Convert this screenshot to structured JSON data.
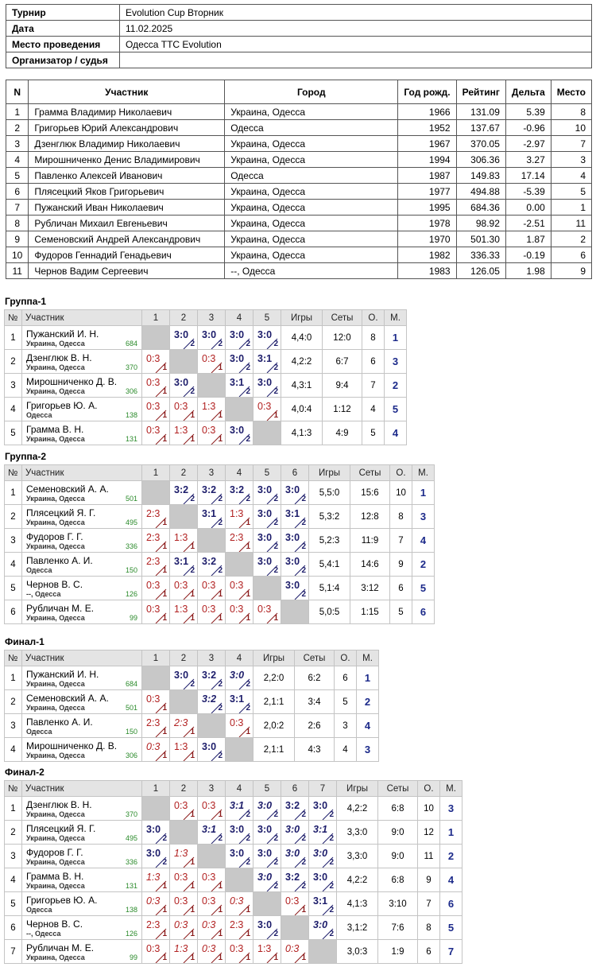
{
  "info": {
    "rows": [
      {
        "label": "Турнир",
        "value": "Evolution Cup Вторник"
      },
      {
        "label": "Дата",
        "value": "11.02.2025"
      },
      {
        "label": "Место проведения",
        "value": "Одесса TTC Evolution"
      },
      {
        "label": "Организатор / судья"
      }
    ]
  },
  "participants": {
    "header": [
      "N",
      "Участник",
      "Город",
      "Год рожд.",
      "Рейтинг",
      "Дельта",
      "Место"
    ],
    "rows": [
      [
        "1",
        "Грамма Владимир Николаевич",
        "Украина, Одесса",
        "1966",
        "131.09",
        "5.39",
        "8"
      ],
      [
        "2",
        "Григорьев Юрий Александрович",
        "Одесса",
        "1952",
        "137.67",
        "-0.96",
        "10"
      ],
      [
        "3",
        "Дзенглюк Владимир Николаевич",
        "Украина, Одесса",
        "1967",
        "370.05",
        "-2.97",
        "7"
      ],
      [
        "4",
        "Мирошниченко Денис Владимирович",
        "Украина, Одесса",
        "1994",
        "306.36",
        "3.27",
        "3"
      ],
      [
        "5",
        "Павленко Алексей Иванович",
        "Одесса",
        "1987",
        "149.83",
        "17.14",
        "4"
      ],
      [
        "6",
        "Плясецкий Яков Григорьевич",
        "Украина, Одесса",
        "1977",
        "494.88",
        "-5.39",
        "5"
      ],
      [
        "7",
        "Пужанский Иван Николаевич",
        "Украина, Одесса",
        "1995",
        "684.36",
        "0.00",
        "1"
      ],
      [
        "8",
        "Рубличан Михаил Евгеньевич",
        "Украина, Одесса",
        "1978",
        "98.92",
        "-2.51",
        "11"
      ],
      [
        "9",
        "Семеновский Андрей Александрович",
        "Украина, Одесса",
        "1970",
        "501.30",
        "1.87",
        "2"
      ],
      [
        "10",
        "Фудоров Геннадий Генадьевич",
        "Украина, Одесса",
        "1982",
        "336.33",
        "-0.19",
        "6"
      ],
      [
        "11",
        "Чернов Вадим Сергеевич",
        "--, Одесса",
        "1983",
        "126.05",
        "1.98",
        "9"
      ]
    ]
  },
  "groups": [
    {
      "title": "Группа-1",
      "header": [
        "№",
        "Участник",
        "1",
        "2",
        "3",
        "4",
        "5",
        "Игры",
        "Сеты",
        "О.",
        "М."
      ],
      "rows": [
        {
          "n": "1",
          "name": "Пужанский И. Н.",
          "city": "Украина, Одесса",
          "rating": "684",
          "results": [
            null,
            {
              "score": "3:0",
              "points": "2"
            },
            {
              "score": "3:0",
              "points": "2"
            },
            {
              "score": "3:0",
              "points": "2"
            },
            {
              "score": "3:0",
              "points": "2"
            }
          ],
          "games": "4,4:0",
          "sets": "12:0",
          "points": "8",
          "place": "1"
        },
        {
          "n": "2",
          "name": "Дзенглюк В. Н.",
          "city": "Украина, Одесса",
          "rating": "370",
          "results": [
            {
              "score": "0:3",
              "points": "1"
            },
            null,
            {
              "score": "0:3",
              "points": "1"
            },
            {
              "score": "3:0",
              "points": "2"
            },
            {
              "score": "3:1",
              "points": "2"
            }
          ],
          "games": "4,2:2",
          "sets": "6:7",
          "points": "6",
          "place": "3"
        },
        {
          "n": "3",
          "name": "Мирошниченко Д. В.",
          "city": "Украина, Одесса",
          "rating": "306",
          "results": [
            {
              "score": "0:3",
              "points": "1"
            },
            {
              "score": "3:0",
              "points": "2"
            },
            null,
            {
              "score": "3:1",
              "points": "2"
            },
            {
              "score": "3:0",
              "points": "2"
            }
          ],
          "games": "4,3:1",
          "sets": "9:4",
          "points": "7",
          "place": "2"
        },
        {
          "n": "4",
          "name": "Григорьев Ю. А.",
          "city": "Одесса",
          "rating": "138",
          "results": [
            {
              "score": "0:3",
              "points": "1"
            },
            {
              "score": "0:3",
              "points": "1"
            },
            {
              "score": "1:3",
              "points": "1"
            },
            null,
            {
              "score": "0:3",
              "points": "1"
            }
          ],
          "games": "4,0:4",
          "sets": "1:12",
          "points": "4",
          "place": "5"
        },
        {
          "n": "5",
          "name": "Грамма В. Н.",
          "city": "Украина, Одесса",
          "rating": "131",
          "results": [
            {
              "score": "0:3",
              "points": "1"
            },
            {
              "score": "1:3",
              "points": "1"
            },
            {
              "score": "0:3",
              "points": "1"
            },
            {
              "score": "3:0",
              "points": "2"
            },
            null
          ],
          "games": "4,1:3",
          "sets": "4:9",
          "points": "5",
          "place": "4"
        }
      ]
    },
    {
      "title": "Группа-2",
      "header": [
        "№",
        "Участник",
        "1",
        "2",
        "3",
        "4",
        "5",
        "6",
        "Игры",
        "Сеты",
        "О.",
        "М."
      ],
      "rows": [
        {
          "n": "1",
          "name": "Семеновский А. А.",
          "city": "Украина, Одесса",
          "rating": "501",
          "results": [
            null,
            {
              "score": "3:2",
              "points": "2"
            },
            {
              "score": "3:2",
              "points": "2"
            },
            {
              "score": "3:2",
              "points": "2"
            },
            {
              "score": "3:0",
              "points": "2"
            },
            {
              "score": "3:0",
              "points": "2"
            }
          ],
          "games": "5,5:0",
          "sets": "15:6",
          "points": "10",
          "place": "1"
        },
        {
          "n": "2",
          "name": "Плясецкий Я. Г.",
          "city": "Украина, Одесса",
          "rating": "495",
          "results": [
            {
              "score": "2:3",
              "points": "1"
            },
            null,
            {
              "score": "3:1",
              "points": "2"
            },
            {
              "score": "1:3",
              "points": "1"
            },
            {
              "score": "3:0",
              "points": "2"
            },
            {
              "score": "3:1",
              "points": "2"
            }
          ],
          "games": "5,3:2",
          "sets": "12:8",
          "points": "8",
          "place": "3"
        },
        {
          "n": "3",
          "name": "Фудоров Г. Г.",
          "city": "Украина, Одесса",
          "rating": "336",
          "results": [
            {
              "score": "2:3",
              "points": "1"
            },
            {
              "score": "1:3",
              "points": "1"
            },
            null,
            {
              "score": "2:3",
              "points": "1"
            },
            {
              "score": "3:0",
              "points": "2"
            },
            {
              "score": "3:0",
              "points": "2"
            }
          ],
          "games": "5,2:3",
          "sets": "11:9",
          "points": "7",
          "place": "4"
        },
        {
          "n": "4",
          "name": "Павленко А. И.",
          "city": "Одесса",
          "rating": "150",
          "results": [
            {
              "score": "2:3",
              "points": "1"
            },
            {
              "score": "3:1",
              "points": "2"
            },
            {
              "score": "3:2",
              "points": "2"
            },
            null,
            {
              "score": "3:0",
              "points": "2"
            },
            {
              "score": "3:0",
              "points": "2"
            }
          ],
          "games": "5,4:1",
          "sets": "14:6",
          "points": "9",
          "place": "2"
        },
        {
          "n": "5",
          "name": "Чернов В. С.",
          "city": "--, Одесса",
          "rating": "126",
          "results": [
            {
              "score": "0:3",
              "points": "1"
            },
            {
              "score": "0:3",
              "points": "1"
            },
            {
              "score": "0:3",
              "points": "1"
            },
            {
              "score": "0:3",
              "points": "1"
            },
            null,
            {
              "score": "3:0",
              "points": "2"
            }
          ],
          "games": "5,1:4",
          "sets": "3:12",
          "points": "6",
          "place": "5"
        },
        {
          "n": "6",
          "name": "Рубличан М. Е.",
          "city": "Украина, Одесса",
          "rating": "99",
          "results": [
            {
              "score": "0:3",
              "points": "1"
            },
            {
              "score": "1:3",
              "points": "1"
            },
            {
              "score": "0:3",
              "points": "1"
            },
            {
              "score": "0:3",
              "points": "1"
            },
            {
              "score": "0:3",
              "points": "1"
            },
            null
          ],
          "games": "5,0:5",
          "sets": "1:15",
          "points": "5",
          "place": "6"
        }
      ]
    },
    {
      "title": "Финал-1",
      "header": [
        "№",
        "Участник",
        "1",
        "2",
        "3",
        "4",
        "Игры",
        "Сеты",
        "О.",
        "М."
      ],
      "rows": [
        {
          "n": "1",
          "name": "Пужанский И. Н.",
          "city": "Украина, Одесса",
          "rating": "684",
          "results": [
            null,
            {
              "score": "3:0",
              "points": "2"
            },
            {
              "score": "3:2",
              "points": "2"
            },
            {
              "score": "3:0",
              "points": "2",
              "italic": true
            }
          ],
          "games": "2,2:0",
          "sets": "6:2",
          "points": "6",
          "place": "1"
        },
        {
          "n": "2",
          "name": "Семеновский А. А.",
          "city": "Украина, Одесса",
          "rating": "501",
          "results": [
            {
              "score": "0:3",
              "points": "1"
            },
            null,
            {
              "score": "3:2",
              "points": "2",
              "italic": true
            },
            {
              "score": "3:1",
              "points": "2"
            }
          ],
          "games": "2,1:1",
          "sets": "3:4",
          "points": "5",
          "place": "2"
        },
        {
          "n": "3",
          "name": "Павленко А. И.",
          "city": "Одесса",
          "rating": "150",
          "results": [
            {
              "score": "2:3",
              "points": "1"
            },
            {
              "score": "2:3",
              "points": "1",
              "italic": true
            },
            null,
            {
              "score": "0:3",
              "points": "1"
            }
          ],
          "games": "2,0:2",
          "sets": "2:6",
          "points": "3",
          "place": "4"
        },
        {
          "n": "4",
          "name": "Мирошниченко Д. В.",
          "city": "Украина, Одесса",
          "rating": "306",
          "results": [
            {
              "score": "0:3",
              "points": "1",
              "italic": true
            },
            {
              "score": "1:3",
              "points": "1"
            },
            {
              "score": "3:0",
              "points": "2"
            },
            null
          ],
          "games": "2,1:1",
          "sets": "4:3",
          "points": "4",
          "place": "3"
        }
      ]
    },
    {
      "title": "Финал-2",
      "header": [
        "№",
        "Участник",
        "1",
        "2",
        "3",
        "4",
        "5",
        "6",
        "7",
        "Игры",
        "Сеты",
        "О.",
        "М."
      ],
      "rows": [
        {
          "n": "1",
          "name": "Дзенглюк В. Н.",
          "city": "Украина, Одесса",
          "rating": "370",
          "results": [
            null,
            {
              "score": "0:3",
              "points": "1"
            },
            {
              "score": "0:3",
              "points": "1"
            },
            {
              "score": "3:1",
              "points": "2",
              "italic": true
            },
            {
              "score": "3:0",
              "points": "2",
              "italic": true
            },
            {
              "score": "3:2",
              "points": "2"
            },
            {
              "score": "3:0",
              "points": "2"
            }
          ],
          "games": "4,2:2",
          "sets": "6:8",
          "points": "10",
          "place": "3"
        },
        {
          "n": "2",
          "name": "Плясецкий Я. Г.",
          "city": "Украина, Одесса",
          "rating": "495",
          "results": [
            {
              "score": "3:0",
              "points": "2"
            },
            null,
            {
              "score": "3:1",
              "points": "2",
              "italic": true
            },
            {
              "score": "3:0",
              "points": "2"
            },
            {
              "score": "3:0",
              "points": "2"
            },
            {
              "score": "3:0",
              "points": "2",
              "italic": true
            },
            {
              "score": "3:1",
              "points": "2",
              "italic": true
            }
          ],
          "games": "3,3:0",
          "sets": "9:0",
          "points": "12",
          "place": "1"
        },
        {
          "n": "3",
          "name": "Фудоров Г. Г.",
          "city": "Украина, Одесса",
          "rating": "336",
          "results": [
            {
              "score": "3:0",
              "points": "2"
            },
            {
              "score": "1:3",
              "points": "1",
              "italic": true
            },
            null,
            {
              "score": "3:0",
              "points": "2"
            },
            {
              "score": "3:0",
              "points": "2"
            },
            {
              "score": "3:0",
              "points": "2",
              "italic": true
            },
            {
              "score": "3:0",
              "points": "2",
              "italic": true
            }
          ],
          "games": "3,3:0",
          "sets": "9:0",
          "points": "11",
          "place": "2"
        },
        {
          "n": "4",
          "name": "Грамма В. Н.",
          "city": "Украина, Одесса",
          "rating": "131",
          "results": [
            {
              "score": "1:3",
              "points": "1",
              "italic": true
            },
            {
              "score": "0:3",
              "points": "1"
            },
            {
              "score": "0:3",
              "points": "1"
            },
            null,
            {
              "score": "3:0",
              "points": "2",
              "italic": true
            },
            {
              "score": "3:2",
              "points": "2"
            },
            {
              "score": "3:0",
              "points": "2"
            }
          ],
          "games": "4,2:2",
          "sets": "6:8",
          "points": "9",
          "place": "4"
        },
        {
          "n": "5",
          "name": "Григорьев Ю. А.",
          "city": "Одесса",
          "rating": "138",
          "results": [
            {
              "score": "0:3",
              "points": "1",
              "italic": true
            },
            {
              "score": "0:3",
              "points": "1"
            },
            {
              "score": "0:3",
              "points": "1"
            },
            {
              "score": "0:3",
              "points": "1",
              "italic": true
            },
            null,
            {
              "score": "0:3",
              "points": "1"
            },
            {
              "score": "3:1",
              "points": "2"
            }
          ],
          "games": "4,1:3",
          "sets": "3:10",
          "points": "7",
          "place": "6"
        },
        {
          "n": "6",
          "name": "Чернов В. С.",
          "city": "--, Одесса",
          "rating": "126",
          "results": [
            {
              "score": "2:3",
              "points": "1"
            },
            {
              "score": "0:3",
              "points": "1",
              "italic": true
            },
            {
              "score": "0:3",
              "points": "1",
              "italic": true
            },
            {
              "score": "2:3",
              "points": "1"
            },
            {
              "score": "3:0",
              "points": "2"
            },
            null,
            {
              "score": "3:0",
              "points": "2",
              "italic": true
            }
          ],
          "games": "3,1:2",
          "sets": "7:6",
          "points": "8",
          "place": "5"
        },
        {
          "n": "7",
          "name": "Рубличан М. Е.",
          "city": "Украина, Одесса",
          "rating": "99",
          "results": [
            {
              "score": "0:3",
              "points": "1"
            },
            {
              "score": "1:3",
              "points": "1",
              "italic": true
            },
            {
              "score": "0:3",
              "points": "1",
              "italic": true
            },
            {
              "score": "0:3",
              "points": "1"
            },
            {
              "score": "1:3",
              "points": "1"
            },
            {
              "score": "0:3",
              "points": "1",
              "italic": true
            },
            null
          ],
          "games": "3,0:3",
          "sets": "1:9",
          "points": "6",
          "place": "7"
        }
      ]
    }
  ]
}
